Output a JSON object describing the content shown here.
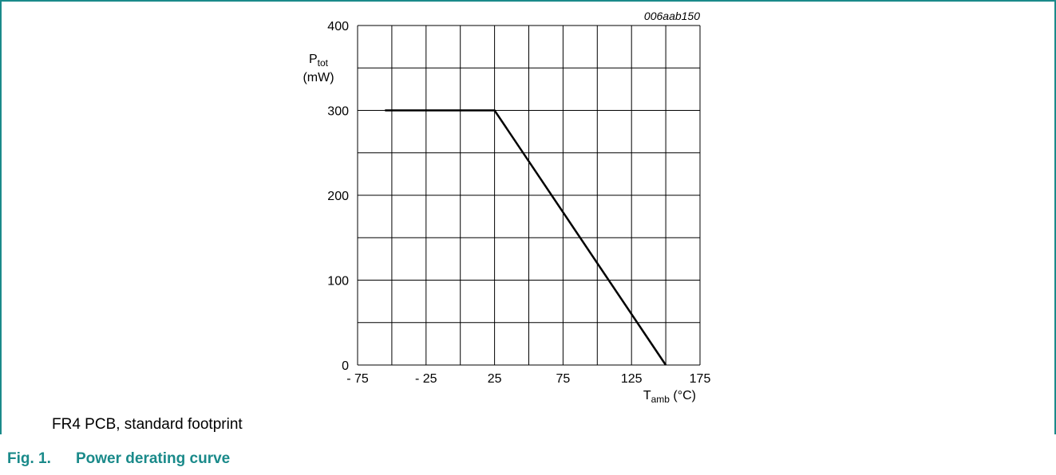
{
  "colors": {
    "accent": "#1a8a8a",
    "grid": "#000000",
    "line": "#000000"
  },
  "chart_data": {
    "type": "line",
    "code": "006aab150",
    "ylabel_main": "P",
    "ylabel_sub": "tot",
    "ylabel_unit": "(mW)",
    "xlabel_main": "T",
    "xlabel_sub": "amb",
    "xlabel_unit": " (°C)",
    "xlim": [
      -75,
      175
    ],
    "ylim": [
      0,
      400
    ],
    "x_ticks": [
      -75,
      -25,
      25,
      75,
      125,
      175
    ],
    "x_tick_labels": [
      "- 75",
      "- 25",
      "25",
      "75",
      "125",
      "175"
    ],
    "y_ticks": [
      0,
      100,
      200,
      300,
      400
    ],
    "y_tick_labels": [
      "0",
      "100",
      "200",
      "300",
      "400"
    ],
    "x_grid_step": 25,
    "y_grid_step": 50,
    "grid": true,
    "series": [
      {
        "x": [
          -55,
          25,
          150
        ],
        "y": [
          300,
          300,
          0
        ]
      }
    ]
  },
  "note": "FR4 PCB, standard footprint",
  "caption": {
    "number": "Fig. 1.",
    "title": "Power derating curve"
  }
}
